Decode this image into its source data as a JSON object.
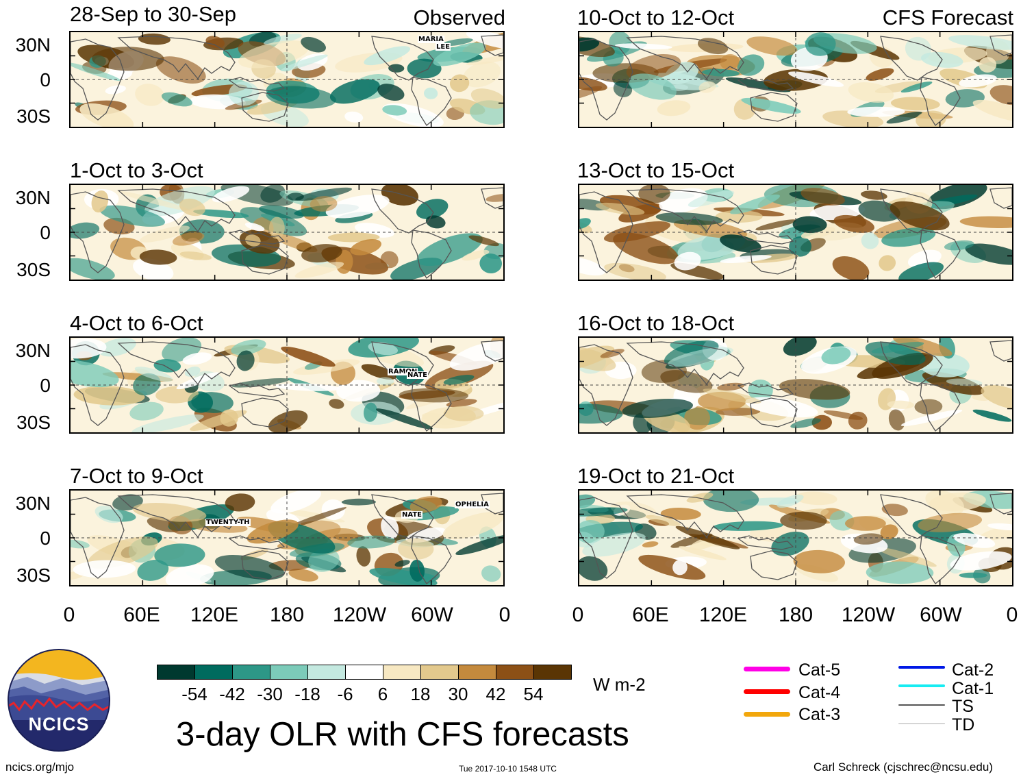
{
  "header": {
    "left_label": "Observed",
    "right_label": "CFS Forecast"
  },
  "observed_panels": [
    {
      "title": "28-Sep to 30-Sep"
    },
    {
      "title": "1-Oct to 3-Oct"
    },
    {
      "title": "4-Oct to 6-Oct"
    },
    {
      "title": "7-Oct to 9-Oct"
    }
  ],
  "forecast_panels": [
    {
      "title": "10-Oct to 12-Oct"
    },
    {
      "title": "13-Oct to 15-Oct"
    },
    {
      "title": "16-Oct to 18-Oct"
    },
    {
      "title": "19-Oct to 21-Oct"
    }
  ],
  "lat_labels": [
    "30N",
    "0",
    "30S"
  ],
  "lon_labels": [
    "0",
    "60E",
    "120E",
    "180",
    "120W",
    "60W",
    "0"
  ],
  "storm_labels": {
    "p1": [
      "MARIA",
      "LEE"
    ],
    "p3": [
      "RAMON",
      "NATE"
    ],
    "p4": [
      "TWENTY-TH",
      "NATE",
      "OPHELIA"
    ]
  },
  "colorbar": {
    "colors": [
      "#00392f",
      "#006b5e",
      "#2d9787",
      "#7ccbb9",
      "#c4e9e0",
      "#ffffff",
      "#f7e8c2",
      "#e3c98d",
      "#c48a3d",
      "#8c5016",
      "#5a3504"
    ],
    "ticks": [
      "-54",
      "-42",
      "-30",
      "-18",
      "-6",
      "6",
      "18",
      "30",
      "42",
      "54"
    ],
    "units": "W m-2"
  },
  "legend": [
    {
      "label": "Cat-5",
      "color": "#ff00e6"
    },
    {
      "label": "Cat-4",
      "color": "#ff0000"
    },
    {
      "label": "Cat-3",
      "color": "#f2a70c"
    },
    {
      "label": "Cat-2",
      "color": "#0019e6"
    },
    {
      "label": "Cat-1",
      "color": "#17ecf2"
    },
    {
      "label": "TS",
      "color": "#555555"
    },
    {
      "label": "TD",
      "color": "#aaaaaa"
    }
  ],
  "logo_text": "NCICS",
  "main_title": "3-day OLR with CFS forecasts",
  "footer": {
    "left": "ncics.org/mjo",
    "center": "Tue 2017-10-10 1548 UTC",
    "right": "Carl Schreck (cjschrec@ncsu.edu)"
  }
}
